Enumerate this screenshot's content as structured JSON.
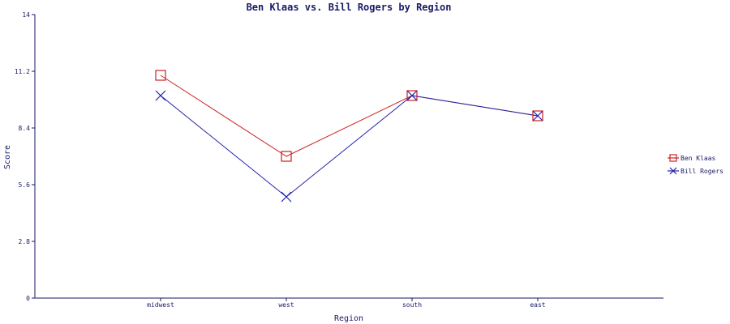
{
  "chart_data": {
    "type": "line",
    "title": "Ben Klaas vs. Bill Rogers by Region",
    "xlabel": "Region",
    "ylabel": "Score",
    "categories": [
      "midwest",
      "west",
      "south",
      "east"
    ],
    "ylim": [
      0,
      14
    ],
    "yticks": [
      "0",
      "2.8",
      "5.6",
      "8.4",
      "11.2",
      "14"
    ],
    "legend_position": "right",
    "grid": false,
    "series": [
      {
        "name": "Ben Klaas",
        "values": [
          11,
          7,
          10,
          9
        ],
        "color": "#cc2222",
        "marker": "square"
      },
      {
        "name": "Bill Rogers",
        "values": [
          10,
          5,
          10,
          9
        ],
        "color": "#2222aa",
        "marker": "x"
      }
    ]
  }
}
